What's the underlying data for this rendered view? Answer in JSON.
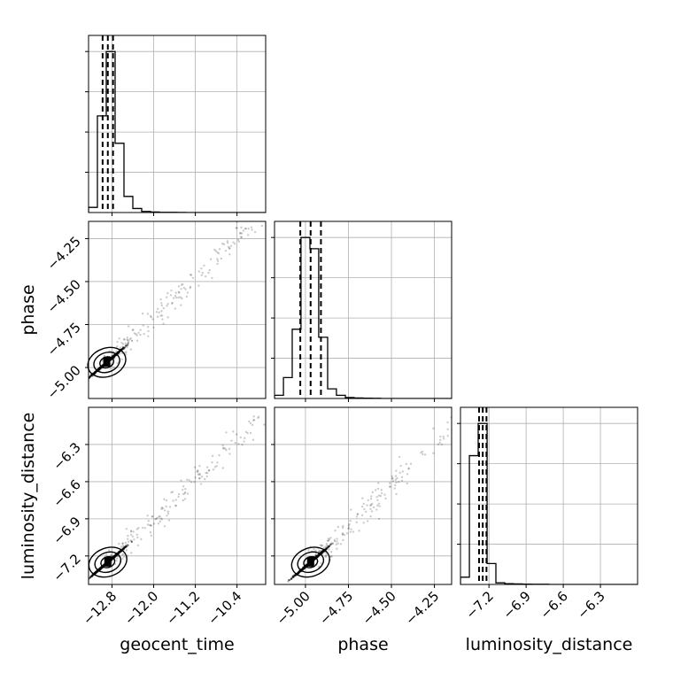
{
  "chart_data": {
    "type": "corner",
    "parameters": [
      "geocent_time",
      "phase",
      "luminosity_distance"
    ],
    "labels": {
      "geocent_time": "geocent_time",
      "phase": "phase",
      "luminosity_distance": "luminosity_distance"
    },
    "ranges": {
      "geocent_time": [
        -13.25,
        -9.85
      ],
      "phase": [
        -5.18,
        -4.15
      ],
      "luminosity_distance": [
        -7.43,
        -6.0
      ]
    },
    "ticks": {
      "geocent_time": {
        "values": [
          -12.8,
          -12.0,
          -11.2,
          -10.4
        ],
        "labels": [
          "−12.8",
          "−12.0",
          "−11.2",
          "−10.4"
        ]
      },
      "phase": {
        "values": [
          -5.0,
          -4.75,
          -4.5,
          -4.25
        ],
        "labels": [
          "−5.00",
          "−4.75",
          "−4.50",
          "−4.25"
        ]
      },
      "luminosity_distance": {
        "values": [
          -7.2,
          -6.9,
          -6.6,
          -6.3
        ],
        "labels": [
          "−7.2",
          "−6.9",
          "−6.6",
          "−6.3"
        ]
      }
    },
    "grid": true,
    "histograms": {
      "geocent_time": {
        "edges": [
          -13.25,
          -13.08,
          -12.91,
          -12.74,
          -12.57,
          -12.4,
          -12.23,
          -12.06,
          -11.89,
          -11.72,
          -11.55,
          -11.38,
          -11.21,
          -11.04,
          -10.87,
          -10.7,
          -10.53,
          -10.36,
          -10.19,
          -10.02,
          -9.85
        ],
        "counts": [
          0.032,
          0.6,
          1.0,
          0.43,
          0.1,
          0.025,
          0.007,
          0.003,
          0.0015,
          0.001,
          0.0005,
          0,
          0,
          0,
          0,
          0,
          0,
          0,
          0,
          0
        ],
        "quantiles": [
          -12.98,
          -12.88,
          -12.78
        ]
      },
      "phase": {
        "edges": [
          -5.18,
          -5.128,
          -5.077,
          -5.026,
          -4.974,
          -4.923,
          -4.871,
          -4.82,
          -4.768,
          -4.717,
          -4.665,
          -4.614,
          -4.562,
          -4.51,
          -4.459,
          -4.407,
          -4.356,
          -4.304,
          -4.253,
          -4.201,
          -4.15
        ],
        "counts": [
          0.02,
          0.13,
          0.43,
          1.0,
          0.93,
          0.38,
          0.06,
          0.02,
          0.006,
          0.003,
          0.002,
          0.001,
          0,
          0,
          0,
          0,
          0,
          0,
          0,
          0
        ],
        "quantiles": [
          -5.03,
          -4.97,
          -4.91
        ]
      },
      "luminosity_distance": {
        "edges": [
          -7.43,
          -7.358,
          -7.287,
          -7.215,
          -7.144,
          -7.072,
          -7.001,
          -6.929,
          -6.858,
          -6.786,
          -6.715,
          -6.643,
          -6.572,
          -6.5,
          -6.429,
          -6.357,
          -6.286,
          -6.214,
          -6.143,
          -6.071,
          -6.0
        ],
        "counts": [
          0.045,
          0.8,
          1.0,
          0.13,
          0.01,
          0.005,
          0.003,
          0.002,
          0.001,
          0.001,
          0,
          0,
          0,
          0,
          0,
          0,
          0,
          0,
          0,
          0
        ],
        "quantiles": [
          -7.28,
          -7.25,
          -7.22
        ]
      }
    },
    "scatter_pairs": [
      {
        "x": "geocent_time",
        "y": "phase",
        "center": [
          -12.9,
          -4.97
        ]
      },
      {
        "x": "geocent_time",
        "y": "luminosity_distance",
        "center": [
          -12.88,
          -7.25
        ]
      },
      {
        "x": "phase",
        "y": "luminosity_distance",
        "center": [
          -4.97,
          -7.25
        ]
      }
    ]
  }
}
